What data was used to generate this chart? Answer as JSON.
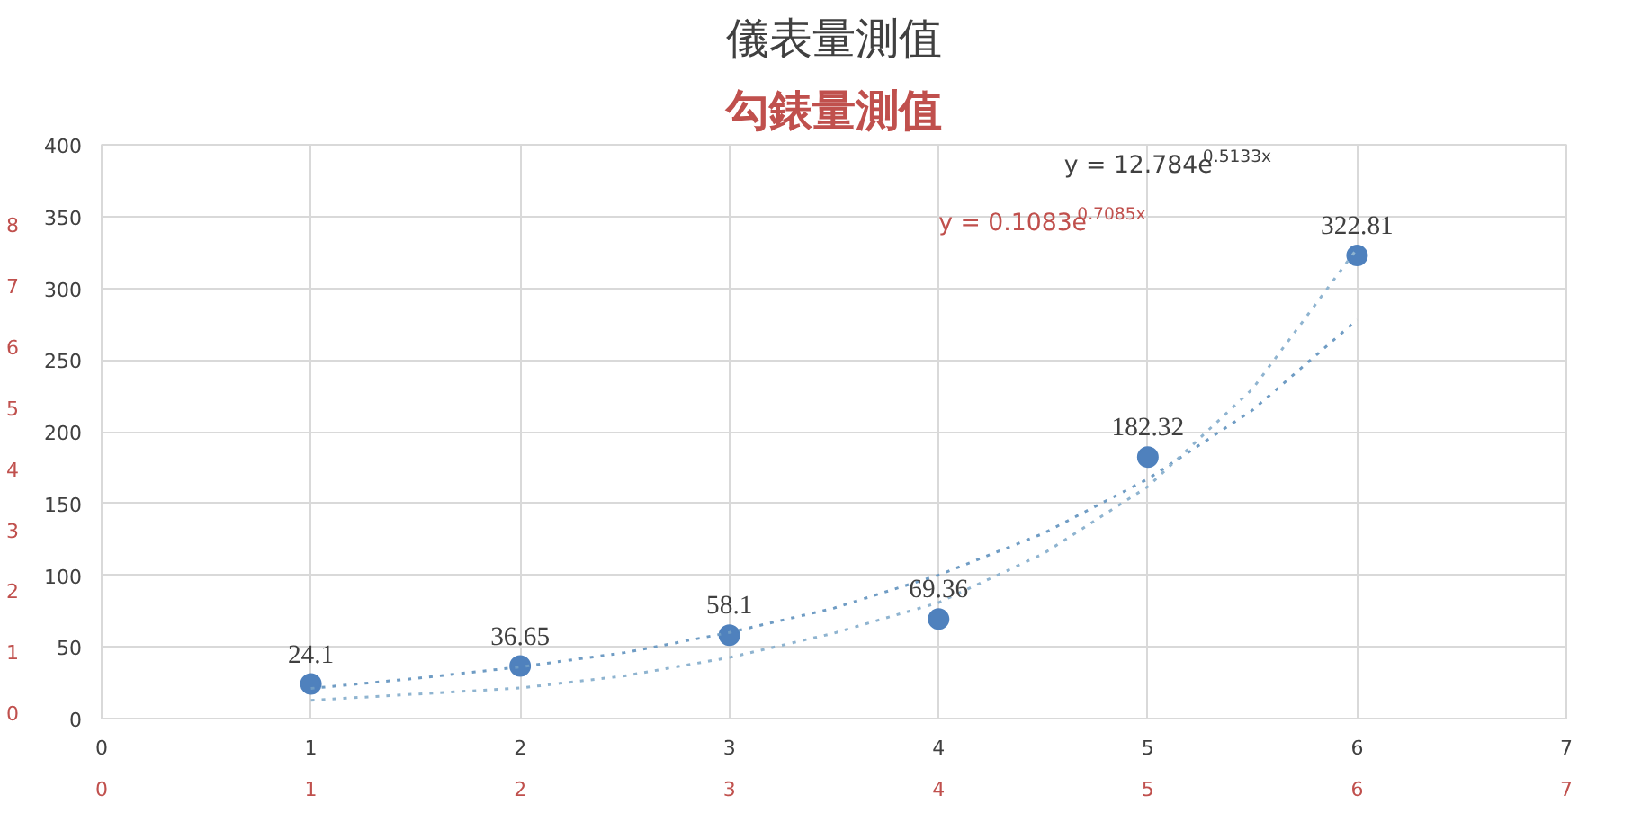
{
  "chart_data": {
    "type": "scatter",
    "title": "儀表量測值",
    "subtitle": "勾錶量測值",
    "annotations": [
      "y = 12.784e$^{0.5133x}$",
      "y = 0.1083e$^{0.7085x}$"
    ],
    "xlim": [
      0,
      7
    ],
    "xticks": [
      0,
      1,
      2,
      3,
      4,
      5,
      6,
      7
    ],
    "x2lim": [
      0,
      7
    ],
    "x2ticks": [
      0,
      1,
      2,
      3,
      4,
      5,
      6,
      7
    ],
    "ylim": [
      0,
      400
    ],
    "yticks": [
      0,
      50,
      100,
      150,
      200,
      250,
      300,
      350,
      400
    ],
    "y2lim": [
      -0.1,
      9.3
    ],
    "y2ticks": [
      0,
      1,
      2,
      3,
      4,
      5,
      6,
      7,
      8
    ],
    "grid": true,
    "series": [
      {
        "marker": "circle",
        "color": "#4f81bd",
        "x": [
          1,
          2,
          3,
          4,
          5,
          6
        ],
        "values": [
          24.1,
          36.65,
          58.1,
          69.36,
          182.32,
          322.81
        ],
        "value_labels": [
          "24.1",
          "36.65",
          "58.1",
          "69.36",
          "182.32",
          "322.81"
        ]
      },
      {
        "type": "line",
        "line_style": "dotted",
        "color": "#6f9cc4",
        "x": [
          1,
          1.5,
          2,
          2.5,
          3,
          3.5,
          4,
          4.5,
          5,
          5.5,
          6
        ],
        "values": [
          21,
          28,
          36,
          46,
          60,
          77,
          100,
          129,
          167,
          215,
          278
        ]
      },
      {
        "type": "line",
        "line_style": "dotted",
        "axis": "y2",
        "color": "#8fb4d0",
        "x": [
          1,
          1.5,
          2,
          2.5,
          3,
          3.5,
          4,
          4.5,
          5,
          5.5,
          6
        ],
        "values": [
          0.2,
          0.3,
          0.4,
          0.6,
          0.9,
          1.3,
          1.8,
          2.6,
          3.7,
          5.3,
          7.6
        ]
      }
    ]
  }
}
